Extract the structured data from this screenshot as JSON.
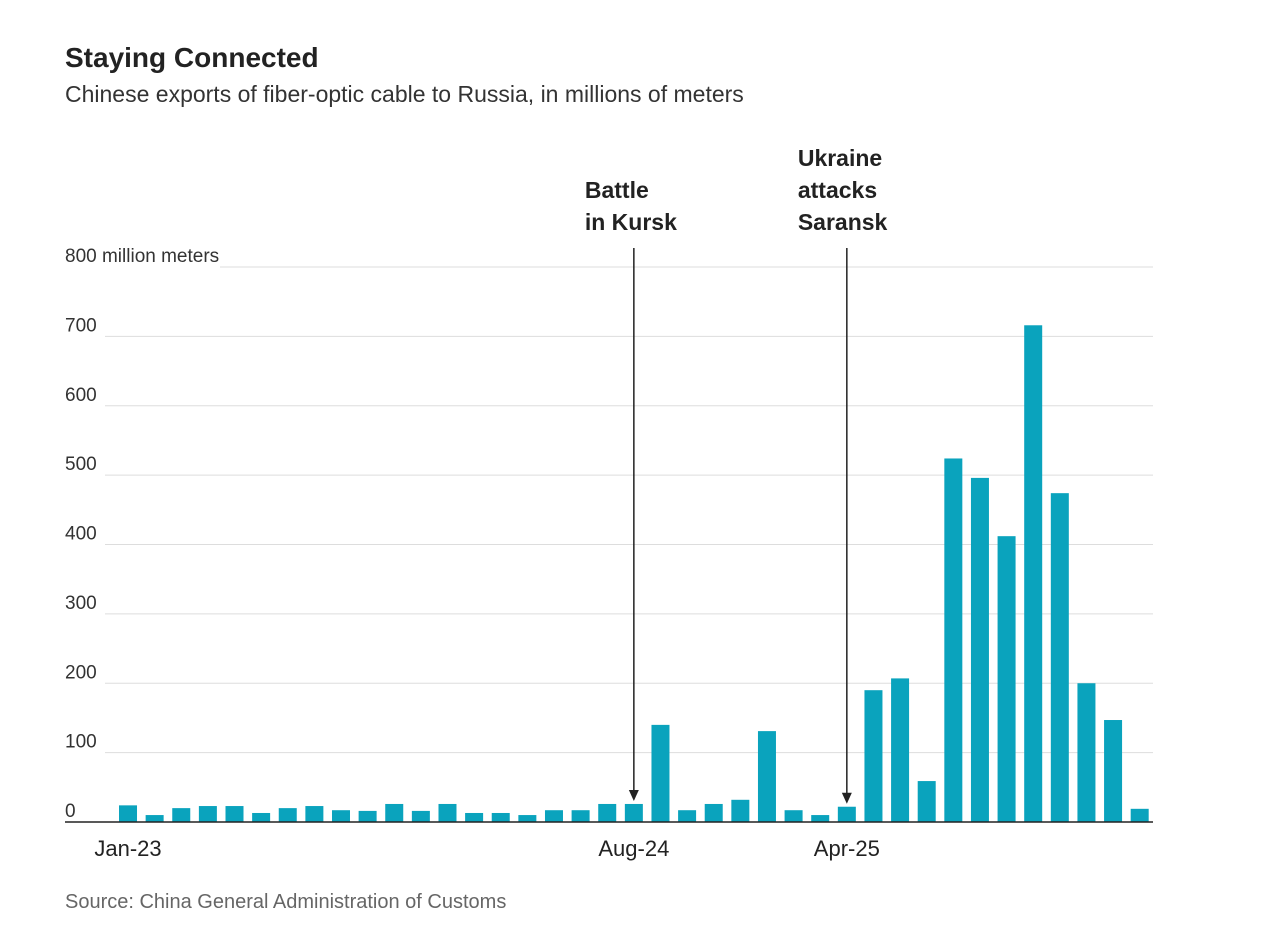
{
  "chart_data": {
    "type": "bar",
    "title": "Staying Connected",
    "subtitle": "Chinese exports of fiber-optic cable to Russia, in millions of meters",
    "source": "Source: China General Administration of Customs",
    "categories": [
      "Jan-23",
      null,
      null,
      null,
      null,
      null,
      null,
      null,
      null,
      null,
      null,
      null,
      null,
      null,
      null,
      null,
      null,
      null,
      null,
      "Aug-24",
      null,
      null,
      null,
      null,
      null,
      null,
      null,
      "Apr-25",
      null,
      null,
      null,
      null,
      null,
      null,
      null,
      null,
      null,
      null,
      null
    ],
    "values": [
      24,
      10,
      20,
      23,
      23,
      13,
      20,
      23,
      17,
      16,
      26,
      16,
      26,
      13,
      13,
      10,
      17,
      17,
      26,
      26,
      140,
      17,
      26,
      32,
      131,
      17,
      10,
      22,
      190,
      207,
      59,
      524,
      496,
      412,
      716,
      474,
      200,
      147,
      19
    ],
    "color": "#0aa3bd",
    "ylim": [
      0,
      800
    ],
    "yticks": [
      0,
      100,
      200,
      300,
      400,
      500,
      600,
      700,
      {
        "value": 800,
        "label": "800 million meters"
      }
    ],
    "grid": true,
    "annotations": [
      {
        "index": 19,
        "lines": [
          "Battle",
          "in Kursk"
        ]
      },
      {
        "index": 27,
        "lines": [
          "Ukraine",
          "attacks",
          "Saransk"
        ]
      }
    ]
  }
}
